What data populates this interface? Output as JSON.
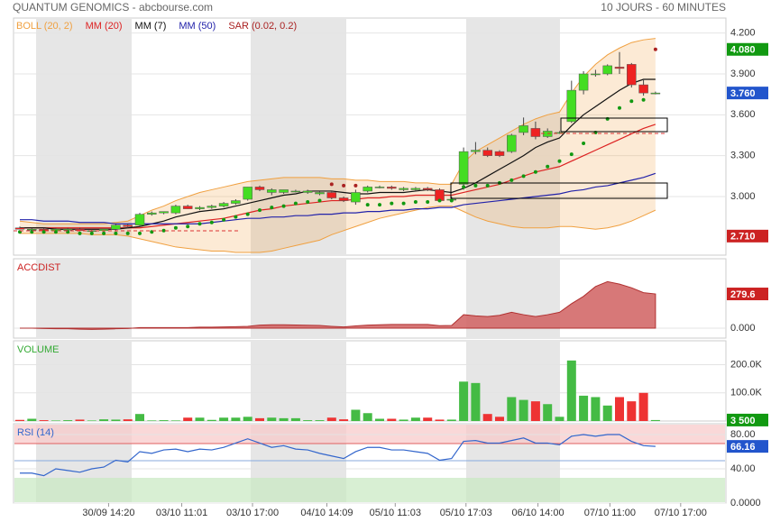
{
  "header": {
    "title": "QUANTUM GENOMICS - abcbourse.com",
    "period": "10 JOURS - 60 MINUTES"
  },
  "chart_data": [
    {
      "type": "candlestick",
      "up_color": "#44dd22",
      "down_color": "#ee2222",
      "open": [
        2.77,
        2.76,
        2.76,
        2.75,
        2.76,
        2.76,
        2.75,
        2.75,
        2.76,
        2.79,
        2.79,
        2.87,
        2.88,
        2.88,
        2.93,
        2.91,
        2.92,
        2.93,
        2.95,
        2.98,
        3.07,
        3.03,
        3.03,
        3.04,
        3.03,
        3.02,
        3.03,
        2.99,
        2.96,
        3.04,
        3.07,
        3.07,
        3.05,
        3.05,
        3.06,
        3.05,
        2.98,
        3.09,
        3.33,
        3.34,
        3.33,
        3.33,
        3.47,
        3.5,
        3.44,
        3.47,
        3.55,
        3.78,
        3.9,
        3.9,
        3.95,
        3.97,
        3.82,
        3.76
      ],
      "high": [
        2.78,
        2.77,
        2.77,
        2.77,
        2.77,
        2.77,
        2.76,
        2.76,
        2.8,
        2.8,
        2.88,
        2.89,
        2.89,
        2.94,
        2.94,
        2.93,
        2.94,
        2.96,
        2.98,
        3.07,
        3.08,
        3.06,
        3.05,
        3.05,
        3.05,
        3.04,
        3.04,
        3.0,
        3.05,
        3.08,
        3.08,
        3.08,
        3.07,
        3.07,
        3.07,
        3.06,
        3.0,
        3.36,
        3.4,
        3.36,
        3.34,
        3.46,
        3.58,
        3.55,
        3.5,
        3.48,
        3.85,
        3.92,
        3.93,
        3.97,
        4.06,
        3.98,
        3.86,
        3.77
      ],
      "low": [
        2.76,
        2.75,
        2.75,
        2.74,
        2.75,
        2.75,
        2.74,
        2.74,
        2.75,
        2.77,
        2.78,
        2.86,
        2.87,
        2.87,
        2.91,
        2.9,
        2.91,
        2.92,
        2.94,
        2.97,
        3.04,
        3.01,
        3.02,
        3.03,
        3.02,
        3.01,
        2.98,
        2.96,
        2.94,
        3.03,
        3.06,
        3.05,
        3.04,
        3.04,
        3.04,
        2.96,
        2.97,
        3.05,
        3.31,
        3.29,
        3.29,
        3.32,
        3.45,
        3.42,
        3.43,
        3.46,
        3.54,
        3.75,
        3.88,
        3.89,
        3.9,
        3.8,
        3.74,
        3.75
      ],
      "close": [
        2.76,
        2.76,
        2.75,
        2.76,
        2.76,
        2.75,
        2.75,
        2.76,
        2.79,
        2.78,
        2.87,
        2.88,
        2.89,
        2.93,
        2.91,
        2.92,
        2.93,
        2.95,
        2.97,
        3.07,
        3.05,
        3.05,
        3.05,
        3.04,
        3.04,
        3.03,
        2.99,
        2.97,
        3.03,
        3.07,
        3.07,
        3.06,
        3.06,
        3.06,
        3.05,
        2.97,
        2.98,
        3.33,
        3.34,
        3.3,
        3.3,
        3.45,
        3.52,
        3.44,
        3.48,
        3.47,
        3.78,
        3.9,
        3.9,
        3.96,
        3.94,
        3.82,
        3.76,
        3.76
      ],
      "ylim": [
        2.57,
        4.31
      ],
      "yticks": [
        {
          "value": 3.0,
          "label": "3.000"
        },
        {
          "value": 3.3,
          "label": "3.300"
        },
        {
          "value": 3.6,
          "label": "3.600"
        },
        {
          "value": 3.9,
          "label": "3.900"
        },
        {
          "value": 4.2,
          "label": "4.200"
        }
      ],
      "flags": [
        {
          "value": 4.08,
          "label": "4.080",
          "color": "#119911"
        },
        {
          "value": 3.76,
          "label": "3.760",
          "color": "#2255cc"
        },
        {
          "value": 2.71,
          "label": "2.710",
          "color": "#cc2222"
        }
      ],
      "series": [
        {
          "name": "BOLL (20, 2)",
          "kind": "band",
          "color": "#f0a040",
          "upper": [
            2.82,
            2.81,
            2.8,
            2.8,
            2.8,
            2.8,
            2.8,
            2.8,
            2.81,
            2.82,
            2.86,
            2.9,
            2.93,
            2.97,
            3.0,
            3.03,
            3.05,
            3.07,
            3.09,
            3.11,
            3.12,
            3.13,
            3.14,
            3.14,
            3.14,
            3.14,
            3.13,
            3.13,
            3.12,
            3.12,
            3.11,
            3.11,
            3.11,
            3.1,
            3.1,
            3.09,
            3.09,
            3.25,
            3.33,
            3.38,
            3.43,
            3.48,
            3.53,
            3.57,
            3.6,
            3.62,
            3.76,
            3.88,
            3.97,
            4.04,
            4.09,
            4.13,
            4.15,
            4.16
          ],
          "lower": [
            2.73,
            2.73,
            2.73,
            2.73,
            2.73,
            2.73,
            2.72,
            2.72,
            2.72,
            2.71,
            2.69,
            2.67,
            2.65,
            2.63,
            2.62,
            2.61,
            2.6,
            2.6,
            2.59,
            2.59,
            2.59,
            2.6,
            2.62,
            2.64,
            2.66,
            2.68,
            2.72,
            2.75,
            2.78,
            2.81,
            2.84,
            2.86,
            2.88,
            2.9,
            2.92,
            2.93,
            2.93,
            2.89,
            2.85,
            2.82,
            2.8,
            2.78,
            2.77,
            2.77,
            2.77,
            2.78,
            2.78,
            2.77,
            2.76,
            2.77,
            2.79,
            2.82,
            2.86,
            2.9
          ]
        },
        {
          "name": "MM (20)",
          "kind": "line",
          "color": "#dd2222",
          "values": [
            2.77,
            2.77,
            2.77,
            2.77,
            2.77,
            2.77,
            2.77,
            2.77,
            2.77,
            2.77,
            2.77,
            2.78,
            2.79,
            2.8,
            2.81,
            2.82,
            2.83,
            2.84,
            2.86,
            2.88,
            2.9,
            2.91,
            2.93,
            2.94,
            2.95,
            2.96,
            2.97,
            2.97,
            2.98,
            2.99,
            2.99,
            3.0,
            3.0,
            3.01,
            3.01,
            3.01,
            3.01,
            3.03,
            3.05,
            3.07,
            3.09,
            3.12,
            3.15,
            3.18,
            3.2,
            3.22,
            3.26,
            3.3,
            3.34,
            3.38,
            3.42,
            3.46,
            3.5,
            3.53
          ]
        },
        {
          "name": "MM (7)",
          "kind": "line",
          "color": "#111111",
          "values": [
            2.77,
            2.77,
            2.77,
            2.76,
            2.76,
            2.76,
            2.76,
            2.76,
            2.76,
            2.77,
            2.78,
            2.8,
            2.82,
            2.85,
            2.87,
            2.89,
            2.9,
            2.91,
            2.93,
            2.95,
            2.97,
            2.99,
            3.01,
            3.02,
            3.04,
            3.04,
            3.04,
            3.03,
            3.02,
            3.02,
            3.03,
            3.03,
            3.03,
            3.04,
            3.05,
            3.04,
            3.03,
            3.06,
            3.1,
            3.15,
            3.2,
            3.25,
            3.3,
            3.36,
            3.4,
            3.43,
            3.52,
            3.6,
            3.66,
            3.72,
            3.78,
            3.83,
            3.86,
            3.86
          ]
        },
        {
          "name": "MM (50)",
          "kind": "line",
          "color": "#2222aa",
          "values": [
            2.83,
            2.83,
            2.82,
            2.82,
            2.82,
            2.81,
            2.81,
            2.81,
            2.8,
            2.8,
            2.8,
            2.8,
            2.8,
            2.8,
            2.8,
            2.8,
            2.81,
            2.82,
            2.83,
            2.84,
            2.84,
            2.85,
            2.85,
            2.86,
            2.86,
            2.87,
            2.87,
            2.88,
            2.88,
            2.89,
            2.89,
            2.9,
            2.9,
            2.91,
            2.91,
            2.92,
            2.92,
            2.94,
            2.95,
            2.96,
            2.97,
            2.98,
            2.99,
            3.0,
            3.01,
            3.02,
            3.04,
            3.05,
            3.07,
            3.08,
            3.1,
            3.12,
            3.14,
            3.17
          ]
        },
        {
          "name": "SAR (0.02, 0.2)",
          "kind": "dots",
          "color": "#aa2222",
          "values": [
            2.74,
            2.74,
            2.74,
            2.74,
            2.74,
            2.73,
            2.73,
            2.73,
            2.73,
            2.73,
            2.73,
            2.74,
            2.75,
            2.77,
            2.78,
            2.8,
            2.81,
            2.83,
            2.85,
            2.87,
            2.9,
            2.92,
            2.93,
            2.95,
            2.96,
            2.97,
            3.09,
            3.08,
            3.08,
            2.94,
            2.94,
            2.95,
            2.95,
            2.96,
            2.96,
            2.97,
            2.97,
            3.07,
            3.08,
            3.08,
            3.1,
            3.12,
            3.15,
            3.18,
            3.22,
            3.26,
            3.31,
            3.39,
            3.47,
            3.57,
            3.65,
            3.7,
            3.71,
            4.08
          ]
        }
      ]
    },
    {
      "type": "area",
      "title": "ACCDIST",
      "color": "#d06060",
      "values": [
        0,
        0,
        -3,
        -5,
        -5,
        -8,
        -10,
        -8,
        -5,
        -3,
        5,
        5,
        5,
        5,
        5,
        8,
        8,
        10,
        12,
        15,
        25,
        28,
        28,
        26,
        24,
        22,
        15,
        10,
        18,
        25,
        28,
        30,
        30,
        30,
        30,
        20,
        22,
        110,
        100,
        95,
        105,
        130,
        110,
        95,
        110,
        130,
        200,
        260,
        340,
        380,
        360,
        330,
        290,
        279.6
      ],
      "ylim": [
        -81,
        567
      ],
      "yticks": [
        {
          "value": 0,
          "label": "0.000"
        }
      ],
      "flags": [
        {
          "value": 279.6,
          "color": "#cc2222"
        }
      ]
    },
    {
      "type": "bar",
      "title": "VOLUME",
      "up_color": "#44bb44",
      "down_color": "#ee3333",
      "values": [
        4000,
        8000,
        3000,
        2000,
        3000,
        5000,
        2000,
        6000,
        5000,
        6000,
        25000,
        2000,
        3000,
        2000,
        12000,
        12000,
        4000,
        12000,
        12000,
        15000,
        10000,
        12000,
        10000,
        10000,
        3000,
        3000,
        12000,
        6000,
        40000,
        28000,
        8000,
        8000,
        5000,
        12000,
        12000,
        5000,
        5000,
        140000,
        135000,
        25000,
        15000,
        85000,
        75000,
        70000,
        60000,
        15000,
        215000,
        90000,
        85000,
        55000,
        85000,
        70000,
        100000,
        3500
      ],
      "ylim": [
        0,
        285000
      ],
      "yticks": [
        {
          "value": 100000,
          "label": "100.0K"
        },
        {
          "value": 200000,
          "label": "200.0K"
        }
      ],
      "flags": [
        {
          "value": 3500,
          "label": "3 500",
          "color": "#119911"
        }
      ]
    },
    {
      "type": "line",
      "title": "RSI (14)",
      "color": "#3366cc",
      "values": [
        35,
        35,
        32,
        40,
        38,
        36,
        40,
        42,
        50,
        48,
        60,
        58,
        62,
        63,
        60,
        63,
        62,
        65,
        70,
        75,
        70,
        65,
        67,
        63,
        62,
        58,
        55,
        52,
        60,
        65,
        65,
        62,
        62,
        60,
        58,
        50,
        52,
        72,
        73,
        70,
        70,
        73,
        76,
        70,
        70,
        68,
        78,
        80,
        78,
        80,
        80,
        72,
        67,
        66.16
      ],
      "ylim": [
        0,
        92.6
      ],
      "yticks": [
        {
          "value": 0,
          "label": "0.0000"
        },
        {
          "value": 40,
          "label": "40.00"
        },
        {
          "value": 80,
          "label": "80.00"
        }
      ],
      "flags": [
        {
          "value": 66.16,
          "color": "#2255cc"
        }
      ],
      "xticks": [
        {
          "value": 7.4,
          "label": "30/09 14:20"
        },
        {
          "value": 13.5,
          "label": "03/10 11:01"
        },
        {
          "value": 19.4,
          "label": "03/10 17:00"
        },
        {
          "value": 25.6,
          "label": "04/10 14:09"
        },
        {
          "value": 31.3,
          "label": "05/10 11:03"
        },
        {
          "value": 37.2,
          "label": "05/10 17:03"
        },
        {
          "value": 43.2,
          "label": "06/10 14:00"
        },
        {
          "value": 49.2,
          "label": "07/10 11:00"
        },
        {
          "value": 55.1,
          "label": "07/10 17:00"
        }
      ]
    }
  ]
}
